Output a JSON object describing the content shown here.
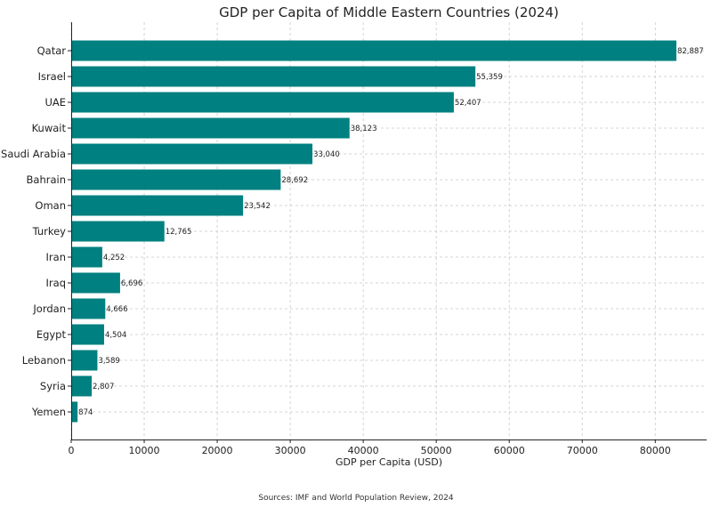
{
  "chart_data": {
    "type": "bar",
    "orientation": "horizontal",
    "title": "GDP per Capita of Middle Eastern Countries (2024)",
    "xlabel": "GDP per Capita (USD)",
    "ylabel": "",
    "categories": [
      "Qatar",
      "Israel",
      "UAE",
      "Kuwait",
      "Saudi Arabia",
      "Bahrain",
      "Oman",
      "Turkey",
      "Iran",
      "Iraq",
      "Jordan",
      "Egypt",
      "Lebanon",
      "Syria",
      "Yemen"
    ],
    "values": [
      82887,
      55359,
      52407,
      38123,
      33040,
      28692,
      23542,
      12765,
      4252,
      6696,
      4666,
      4504,
      3589,
      2807,
      874
    ],
    "value_labels": [
      "82,887",
      "55,359",
      "52,407",
      "38,123",
      "33,040",
      "28,692",
      "23,542",
      "12,765",
      "4,252",
      "6,696",
      "4,666",
      "4,504",
      "3,589",
      "2,807",
      "874"
    ],
    "xlim": [
      0,
      87036
    ],
    "xticks": [
      0,
      10000,
      20000,
      30000,
      40000,
      50000,
      60000,
      70000,
      80000
    ],
    "xtick_labels": [
      "0",
      "10000",
      "20000",
      "30000",
      "40000",
      "50000",
      "60000",
      "70000",
      "80000"
    ],
    "grid": true,
    "bar_color": "#008080",
    "source": "Sources: IMF and World Population Review, 2024"
  }
}
